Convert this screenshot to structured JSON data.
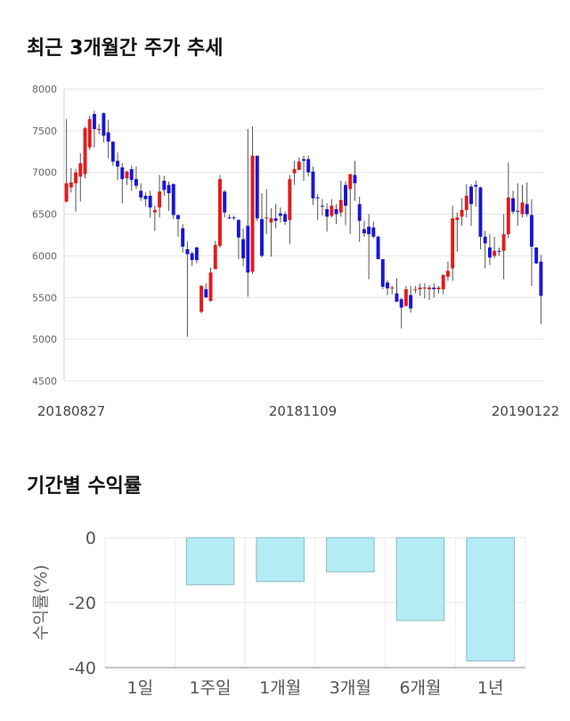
{
  "section_titles": {
    "price": "최근 3개월간 주가 추세",
    "returns": "기간별 수익률"
  },
  "chart_data": [
    {
      "type": "candlestick",
      "title": "최근 3개월간 주가 추세",
      "y_ticks": [
        "8000",
        "7500",
        "7000",
        "6500",
        "6000",
        "5500",
        "5000",
        "4500"
      ],
      "ylim": [
        4500,
        8000
      ],
      "x_labels": [
        "20180827",
        "20181109",
        "20190122"
      ],
      "up_color": "#e31b1b",
      "down_color": "#1a14d6",
      "grid": true,
      "candles": [
        [
          6650,
          6870,
          7640,
          6640
        ],
        [
          6820,
          6880,
          7050,
          6760
        ],
        [
          6870,
          7000,
          7040,
          6530
        ],
        [
          6950,
          7110,
          7230,
          6650
        ],
        [
          6980,
          7530,
          7550,
          6930
        ],
        [
          7300,
          7640,
          7680,
          7270
        ],
        [
          7700,
          7520,
          7740,
          7300
        ],
        [
          7510,
          7520,
          7580,
          7460
        ],
        [
          7710,
          7440,
          7720,
          7360
        ],
        [
          7480,
          7370,
          7630,
          7170
        ],
        [
          7370,
          7130,
          7370,
          7080
        ],
        [
          7140,
          7070,
          7240,
          6910
        ],
        [
          7060,
          6920,
          7110,
          6630
        ],
        [
          6930,
          7010,
          7020,
          6850
        ],
        [
          7040,
          6910,
          7080,
          6780
        ],
        [
          6920,
          6840,
          7070,
          6800
        ],
        [
          6780,
          6700,
          6870,
          6660
        ],
        [
          6720,
          6680,
          6760,
          6590
        ],
        [
          6720,
          6580,
          6780,
          6460
        ],
        [
          6520,
          6550,
          6600,
          6300
        ],
        [
          6580,
          6770,
          6970,
          6460
        ],
        [
          6900,
          6790,
          6960,
          6720
        ],
        [
          6850,
          6750,
          6890,
          6540
        ],
        [
          6860,
          6490,
          6870,
          6440
        ],
        [
          6490,
          6440,
          6470,
          6230
        ],
        [
          6330,
          6110,
          6380,
          6040
        ],
        [
          6080,
          6020,
          6170,
          5030
        ],
        [
          6030,
          5950,
          6050,
          5880
        ],
        [
          6100,
          5950,
          6110,
          5910
        ],
        [
          5330,
          5640,
          5650,
          5310
        ],
        [
          5600,
          5500,
          5670,
          5520
        ],
        [
          5460,
          5800,
          5860,
          5450
        ],
        [
          5840,
          6130,
          6180,
          5940
        ],
        [
          6120,
          6920,
          6970,
          6100
        ],
        [
          6770,
          6520,
          6790,
          6460
        ],
        [
          6460,
          6450,
          6500,
          6440
        ],
        [
          6460,
          6450,
          6480,
          6430
        ],
        [
          6430,
          6220,
          6440,
          5960
        ],
        [
          6200,
          5970,
          6330,
          5880
        ],
        [
          6360,
          5800,
          7520,
          5510
        ],
        [
          5810,
          7200,
          7550,
          5780
        ],
        [
          7200,
          6450,
          7200,
          6420
        ],
        [
          6440,
          6000,
          6750,
          5980
        ],
        [
          6460,
          6460,
          6800,
          6260
        ],
        [
          6400,
          6450,
          6570,
          5990
        ],
        [
          6450,
          6420,
          6620,
          6330
        ],
        [
          6510,
          6480,
          6580,
          6400
        ],
        [
          6500,
          6410,
          6530,
          6370
        ],
        [
          6430,
          6920,
          6970,
          6140
        ],
        [
          6990,
          7040,
          7140,
          6850
        ],
        [
          7030,
          7130,
          7180,
          7080
        ],
        [
          7160,
          7140,
          7200,
          6900
        ],
        [
          7160,
          7000,
          7200,
          6950
        ],
        [
          7010,
          6690,
          7070,
          6610
        ],
        [
          6700,
          6690,
          6740,
          6430
        ],
        [
          6600,
          6590,
          6680,
          6480
        ],
        [
          6560,
          6470,
          6630,
          6290
        ],
        [
          6480,
          6600,
          6680,
          6460
        ],
        [
          6560,
          6500,
          6620,
          6380
        ],
        [
          6520,
          6670,
          6900,
          6470
        ],
        [
          6850,
          6600,
          6890,
          6370
        ],
        [
          6800,
          6980,
          6980,
          6260
        ],
        [
          6970,
          6870,
          7140,
          6660
        ],
        [
          6620,
          6420,
          6710,
          6170
        ],
        [
          6320,
          6270,
          6420,
          6230
        ],
        [
          6350,
          6260,
          6500,
          5720
        ],
        [
          6340,
          6230,
          6410,
          6210
        ],
        [
          6230,
          5960,
          6240,
          5970
        ],
        [
          5960,
          5630,
          5960,
          5600
        ],
        [
          5680,
          5610,
          5710,
          5530
        ],
        [
          5620,
          5620,
          5640,
          5540
        ],
        [
          5550,
          5450,
          5730,
          5490
        ],
        [
          5480,
          5380,
          5500,
          5130
        ],
        [
          5400,
          5600,
          5640,
          5390
        ],
        [
          5530,
          5370,
          5640,
          5320
        ],
        [
          5600,
          5600,
          5640,
          5550
        ],
        [
          5600,
          5620,
          5670,
          5520
        ],
        [
          5620,
          5620,
          5670,
          5490
        ],
        [
          5600,
          5620,
          5650,
          5470
        ],
        [
          5620,
          5600,
          5670,
          5500
        ],
        [
          5600,
          5620,
          5640,
          5550
        ],
        [
          5600,
          5770,
          5780,
          5540
        ],
        [
          5750,
          5820,
          5930,
          5700
        ],
        [
          5850,
          6450,
          6600,
          5700
        ],
        [
          6430,
          6460,
          6520,
          6050
        ],
        [
          6470,
          6550,
          6690,
          6360
        ],
        [
          6550,
          6720,
          6860,
          6460
        ],
        [
          6830,
          6620,
          6860,
          6360
        ],
        [
          6850,
          6830,
          6900,
          6590
        ],
        [
          6820,
          6230,
          6830,
          6080
        ],
        [
          6230,
          6150,
          6300,
          5850
        ],
        [
          6100,
          5980,
          6260,
          5890
        ],
        [
          6000,
          6060,
          6230,
          5970
        ],
        [
          6060,
          6050,
          6100,
          6000
        ],
        [
          6060,
          6260,
          6500,
          5720
        ],
        [
          6260,
          6700,
          7120,
          6210
        ],
        [
          6690,
          6530,
          6780,
          6500
        ],
        [
          6540,
          6530,
          6870,
          6360
        ],
        [
          6500,
          6640,
          6850,
          6460
        ],
        [
          6620,
          6500,
          6880,
          6470
        ],
        [
          6490,
          6110,
          6680,
          5640
        ],
        [
          6100,
          5910,
          6100,
          5900
        ],
        [
          5930,
          5520,
          6010,
          5180
        ]
      ]
    },
    {
      "type": "bar",
      "title": "기간별 수익률",
      "categories": [
        "1일",
        "1주일",
        "1개월",
        "3개월",
        "6개월",
        "1년"
      ],
      "values": [
        0,
        -14.5,
        -13.5,
        -10.5,
        -25.5,
        -38.0
      ],
      "ylabel": "수익률(%)",
      "y_ticks": [
        "0",
        "-20",
        "-40"
      ],
      "ylim": [
        -40,
        0
      ],
      "bar_color": "#b3ecf5",
      "bar_edge_color": "#8ab8c0",
      "grid": true
    }
  ]
}
